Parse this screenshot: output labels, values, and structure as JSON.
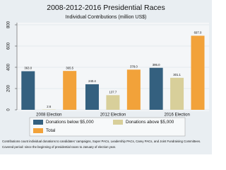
{
  "chart_data": {
    "type": "bar",
    "title": "2008-2012-2016 Presidential Races",
    "subtitle": "Individual Contributions (million US$)",
    "categories": [
      "2008 Election",
      "2012 Election",
      "2016 Election"
    ],
    "series": [
      {
        "name": "Donations below $5,000",
        "color": "#34607f",
        "values": [
          363.0,
          240.4,
          395.0
        ],
        "value_labels": [
          "363.0",
          "240.4",
          "395.0"
        ]
      },
      {
        "name": "Donations above $5,000",
        "color": "#d8cf9a",
        "values": [
          2.6,
          137.7,
          301.1
        ],
        "value_labels": [
          "2.6",
          "137.7",
          "301.1"
        ]
      },
      {
        "name": "Total",
        "color": "#f2a23a",
        "values": [
          365.5,
          378.0,
          697.0
        ],
        "value_labels": [
          "365.5",
          "378.0",
          "697.0"
        ]
      }
    ],
    "ylim": [
      0,
      800
    ],
    "yticks": [
      0,
      200,
      400,
      600,
      800
    ],
    "grid": true,
    "legend": "bottom",
    "notes": [
      "Contributions count individual donations to candidates' campaigns, Super PACs, Leadership PACs, Carey PACs, and Joint Fundraising Committees.",
      "Covered period: since the beginning of presidential races to January of election year."
    ]
  }
}
